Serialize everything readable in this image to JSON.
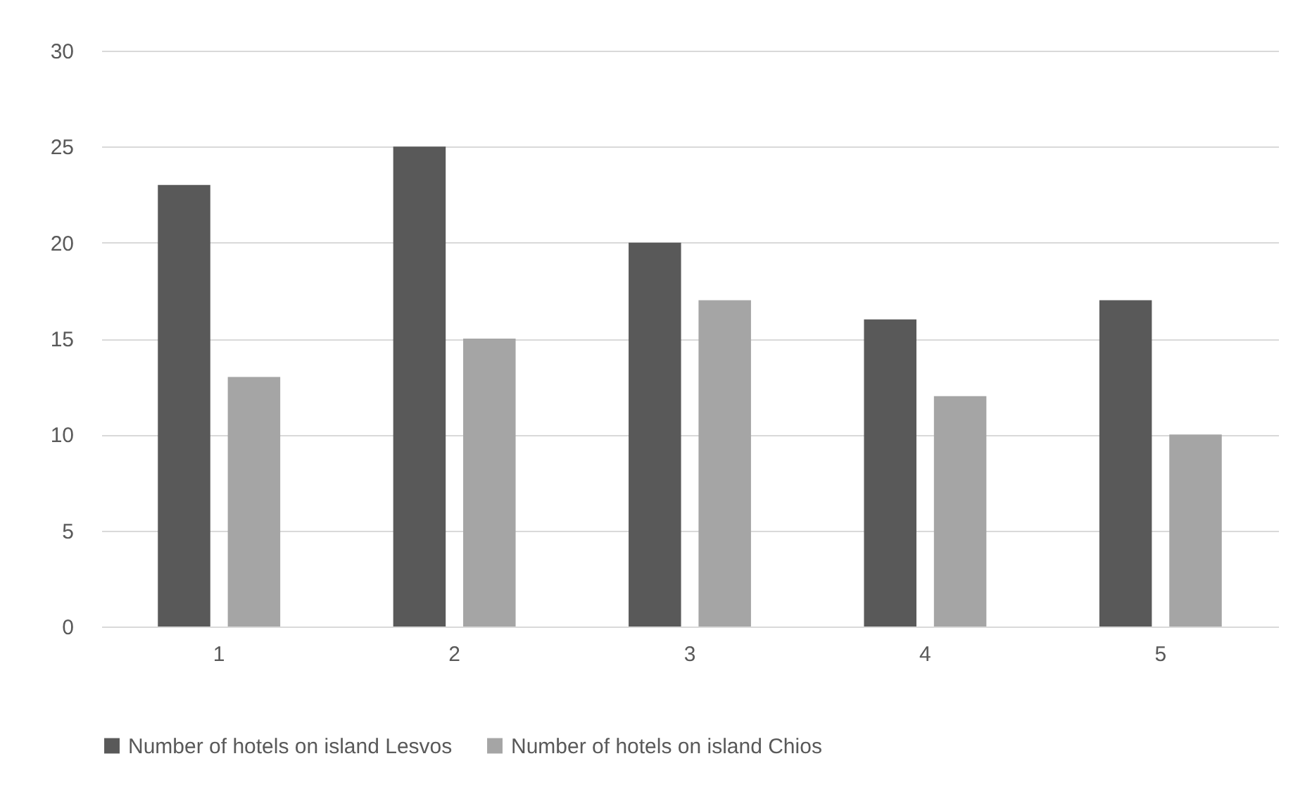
{
  "chart_data": {
    "type": "bar",
    "categories": [
      "1",
      "2",
      "3",
      "4",
      "5"
    ],
    "series": [
      {
        "name": "Number of hotels on island Lesvos",
        "color": "#595959",
        "values": [
          23,
          25,
          20,
          16,
          17
        ]
      },
      {
        "name": "Number of hotels on island Chios",
        "color": "#a5a5a5",
        "values": [
          13,
          15,
          17,
          12,
          10
        ]
      }
    ],
    "ylim": [
      0,
      30
    ],
    "yticks": [
      0,
      5,
      10,
      15,
      20,
      25,
      30
    ],
    "grid": "y",
    "legend": "bottom"
  }
}
